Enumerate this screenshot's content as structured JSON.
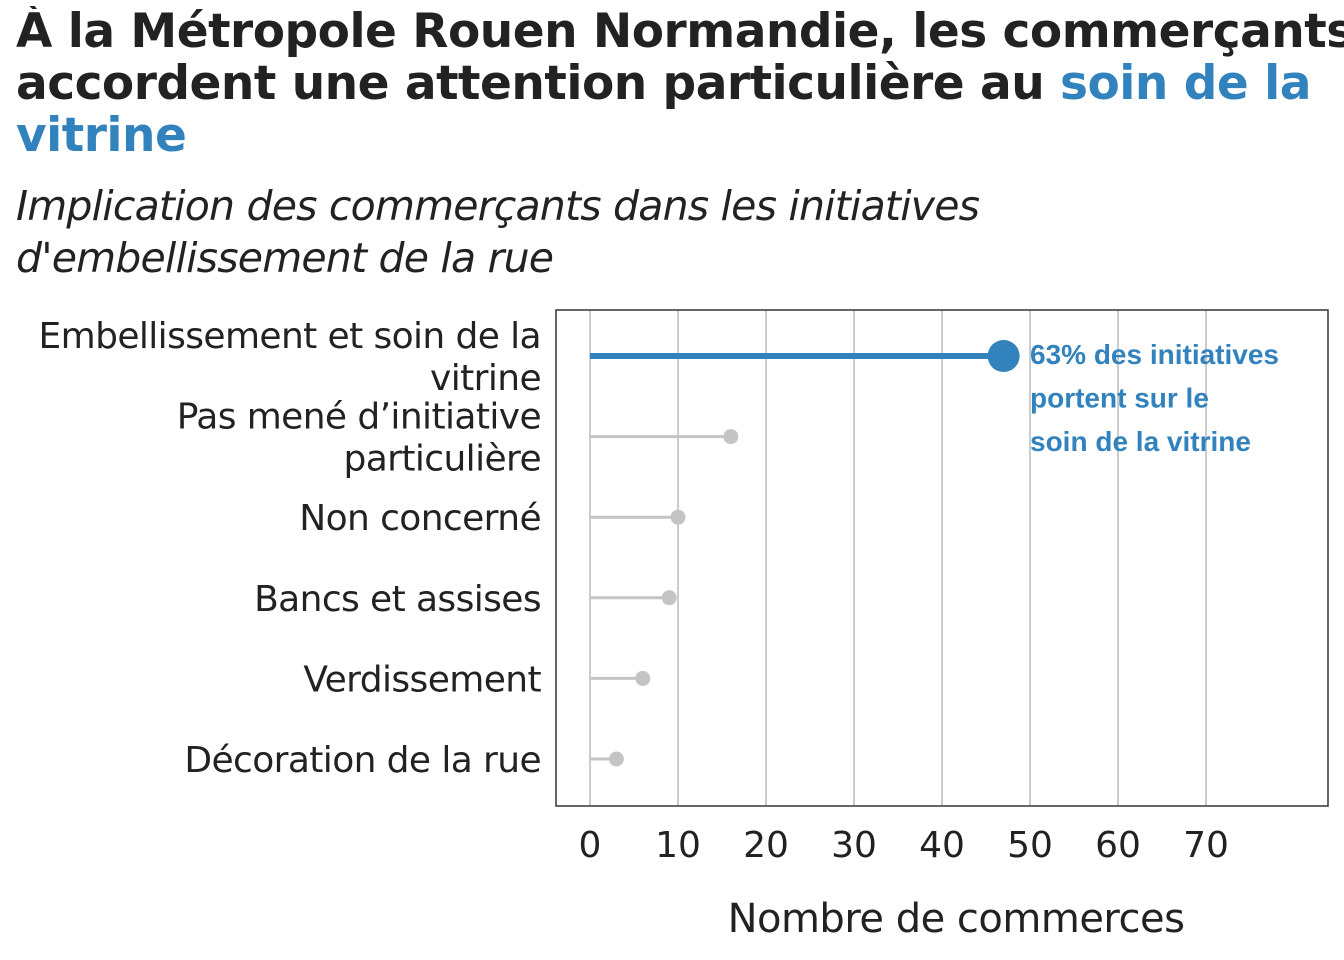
{
  "title": {
    "line1": "À la Métropole Rouen Normandie, les commerçants",
    "line2_plain": "accordent une attention particulière au ",
    "line2_accent": "soin de la",
    "line3_accent": "vitrine"
  },
  "subtitle": {
    "line1": "Implication des commerçants dans les initiatives",
    "line2": "d'embellissement de la rue"
  },
  "annotation": {
    "lines": [
      "63% des initiatives",
      "portent sur le",
      "soin de la vitrine"
    ]
  },
  "colors": {
    "highlight": "#3182bd",
    "muted": "#c4c4c4",
    "grid": "#cccccc",
    "frame": "#333333",
    "text": "#222222"
  },
  "chart_data": {
    "type": "lollipop",
    "categories": [
      "Embellissement et soin de la vitrine",
      "Pas mené d’initiative particulière",
      "Non concerné",
      "Bancs et assises",
      "Verdissement",
      "Décoration de la rue"
    ],
    "category_label_lines": [
      [
        "Embellissement et soin de la",
        "vitrine"
      ],
      [
        "Pas mené d’initiative",
        "particulière"
      ],
      [
        "Non concerné"
      ],
      [
        "Bancs et assises"
      ],
      [
        "Verdissement"
      ],
      [
        "Décoration de la rue"
      ]
    ],
    "values": [
      47,
      16,
      10,
      9,
      6,
      3
    ],
    "highlighted_index": 0,
    "xlabel": "Nombre de commerces",
    "ylabel": "",
    "xticks": [
      0,
      10,
      20,
      30,
      40,
      50,
      60,
      70
    ],
    "xlim": [
      -4,
      84
    ],
    "grid": true
  }
}
